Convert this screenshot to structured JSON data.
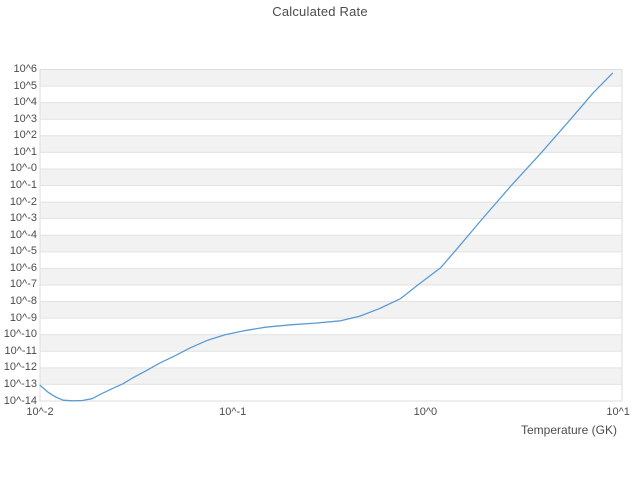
{
  "title": "Calculated Rate",
  "colors": {
    "line": "#5b9bd5",
    "band_fill": "#f2f2f2",
    "gridline": "#e2e2e2",
    "plot_border": "#dedede",
    "text": "#4c4c4c",
    "background": "#ffffff"
  },
  "chart_data": {
    "type": "line",
    "title": "Calculated Rate",
    "xlabel": "Temperature (GK)",
    "ylabel": "",
    "x_unit": "GK",
    "x_scale": "log",
    "y_scale": "log",
    "grid": "horizontal-bands",
    "legend_position": "none",
    "x_tick_labels": [
      "10^-2",
      "10^-1",
      "10^0",
      "10^1"
    ],
    "x_tick_log_values": [
      -2,
      -1,
      0,
      1
    ],
    "y_tick_labels": [
      "10^6",
      "10^5",
      "10^4",
      "10^3",
      "10^2",
      "10^1",
      "10^-0",
      "10^-1",
      "10^-2",
      "10^-3",
      "10^-4",
      "10^-5",
      "10^-6",
      "10^-7",
      "10^-8",
      "10^-9",
      "10^-10",
      "10^-11",
      "10^-12",
      "10^-13",
      "10^-14"
    ],
    "y_tick_log_values": [
      6,
      5,
      4,
      3,
      2,
      1,
      0,
      -1,
      -2,
      -3,
      -4,
      -5,
      -6,
      -7,
      -8,
      -9,
      -10,
      -11,
      -12,
      -13,
      -14
    ],
    "x_range_log": [
      -2,
      1.02
    ],
    "y_range_log": [
      -14,
      6
    ],
    "series": [
      {
        "name": "calculated-rate",
        "color": "#5b9bd5",
        "points_log10_T_vs_log10_rate": [
          [
            -2.0,
            -13.05
          ],
          [
            -1.96,
            -13.45
          ],
          [
            -1.92,
            -13.75
          ],
          [
            -1.88,
            -13.95
          ],
          [
            -1.83,
            -13.99
          ],
          [
            -1.78,
            -13.97
          ],
          [
            -1.73,
            -13.86
          ],
          [
            -1.68,
            -13.56
          ],
          [
            -1.63,
            -13.28
          ],
          [
            -1.57,
            -12.96
          ],
          [
            -1.52,
            -12.61
          ],
          [
            -1.45,
            -12.18
          ],
          [
            -1.38,
            -11.72
          ],
          [
            -1.3,
            -11.27
          ],
          [
            -1.22,
            -10.79
          ],
          [
            -1.13,
            -10.33
          ],
          [
            -1.04,
            -10.0
          ],
          [
            -0.94,
            -9.76
          ],
          [
            -0.83,
            -9.55
          ],
          [
            -0.7,
            -9.4
          ],
          [
            -0.57,
            -9.3
          ],
          [
            -0.44,
            -9.16
          ],
          [
            -0.34,
            -8.88
          ],
          [
            -0.24,
            -8.43
          ],
          [
            -0.13,
            -7.83
          ],
          [
            -0.03,
            -6.92
          ],
          [
            0.08,
            -5.95
          ],
          [
            0.18,
            -4.6
          ],
          [
            0.29,
            -3.08
          ],
          [
            0.44,
            -1.07
          ],
          [
            0.6,
            0.97
          ],
          [
            0.75,
            2.96
          ],
          [
            0.87,
            4.59
          ],
          [
            0.97,
            5.77
          ]
        ]
      }
    ]
  }
}
